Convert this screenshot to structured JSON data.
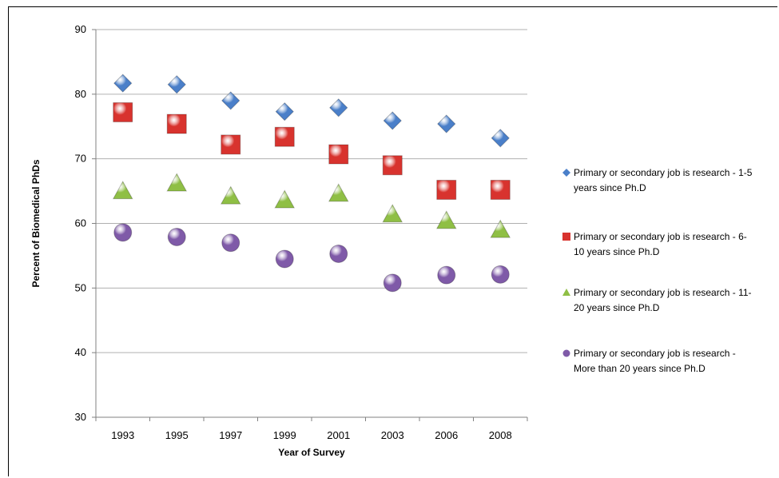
{
  "chart_data": {
    "type": "scatter",
    "xlabel": "Year of Survey",
    "ylabel": "Percent of Biomedical PhDs",
    "categories": [
      "1993",
      "1995",
      "1997",
      "1999",
      "2001",
      "2003",
      "2006",
      "2008"
    ],
    "ylim": [
      30,
      90
    ],
    "yticks": [
      "30",
      "40",
      "50",
      "60",
      "70",
      "80",
      "90"
    ],
    "grid": "horizontal",
    "legend_position": "right",
    "series": [
      {
        "name": "Primary or secondary job is research - 1-5 years since Ph.D",
        "legend_lines": [
          "Primary or secondary job is research - 1-5",
          "years since Ph.D"
        ],
        "marker": "diamond",
        "color": "#4a7fc9",
        "values": [
          81.7,
          81.5,
          79.0,
          77.3,
          77.9,
          75.9,
          75.4,
          73.2
        ]
      },
      {
        "name": "Primary or secondary job is research - 6-10 years since Ph.D",
        "legend_lines": [
          "Primary or secondary job is research - 6-",
          "10 years since Ph.D"
        ],
        "marker": "square",
        "color": "#d8332e",
        "values": [
          77.2,
          75.4,
          72.2,
          73.4,
          70.7,
          69.0,
          65.2,
          65.2
        ]
      },
      {
        "name": "Primary or secondary job is research - 11-20 years since Ph.D",
        "legend_lines": [
          "Primary or secondary job is research - 11-",
          "20 years since Ph.D"
        ],
        "marker": "triangle",
        "color": "#8fbf45",
        "values": [
          65.0,
          66.2,
          64.2,
          63.6,
          64.6,
          61.4,
          60.4,
          59.0
        ]
      },
      {
        "name": "Primary or secondary job is research - More than 20 years since Ph.D",
        "legend_lines": [
          "Primary or secondary job is research -",
          "More than 20 years since Ph.D"
        ],
        "marker": "circle",
        "color": "#7f5aa8",
        "values": [
          58.6,
          57.9,
          57.0,
          54.5,
          55.3,
          50.8,
          52.0,
          52.1
        ]
      }
    ]
  }
}
